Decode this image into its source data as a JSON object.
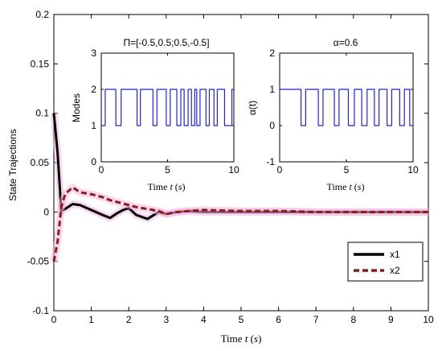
{
  "chart_data": [
    {
      "type": "line",
      "title": "",
      "xlabel_prefix": "Time ",
      "xlabel_var": "t",
      "xlabel_unit_open": " (",
      "xlabel_unit": "s",
      "xlabel_unit_close": ")",
      "ylabel": "State Trajections",
      "xlim": [
        0,
        10
      ],
      "ylim": [
        -0.1,
        0.2
      ],
      "xticks": [
        0,
        1,
        2,
        3,
        4,
        5,
        6,
        7,
        8,
        9,
        10
      ],
      "yticks": [
        -0.1,
        -0.05,
        0,
        0.05,
        0.1,
        0.15,
        0.2
      ],
      "ytick_labels": [
        "-0.1",
        "-0.05",
        "0",
        "0.05",
        "0.1",
        "0.15",
        "0.2"
      ],
      "legend": "bottom-right",
      "series": [
        {
          "name": "x1",
          "color": "#000000",
          "style": "solid",
          "x": [
            0,
            0.1,
            0.2,
            0.3,
            0.5,
            0.7,
            1.0,
            1.3,
            1.5,
            1.7,
            1.85,
            2.0,
            2.2,
            2.5,
            2.8,
            3.0,
            3.3,
            3.6,
            4.0,
            5.0,
            6.0,
            7.0,
            8.0,
            9.0,
            10.0
          ],
          "y": [
            0.1,
            0.06,
            0.001,
            0.003,
            0.008,
            0.007,
            0.002,
            -0.003,
            -0.006,
            -0.001,
            0.002,
            0.004,
            -0.003,
            -0.007,
            0.0,
            -0.002,
            0.0,
            0.001,
            0.0,
            0.0,
            0.0,
            0.0,
            0.0,
            0.0,
            0.0
          ]
        },
        {
          "name": "x2",
          "color": "#8b1a1a",
          "style": "dashed",
          "x": [
            0,
            0.1,
            0.2,
            0.3,
            0.5,
            0.7,
            1.0,
            1.3,
            1.5,
            1.8,
            2.0,
            2.2,
            2.5,
            2.8,
            3.0,
            3.3,
            3.6,
            4.0,
            5.0,
            6.0,
            7.0,
            8.0,
            9.0,
            10.0
          ],
          "y": [
            -0.05,
            -0.03,
            0.005,
            0.018,
            0.025,
            0.02,
            0.018,
            0.015,
            0.012,
            0.009,
            0.007,
            0.005,
            0.003,
            0.001,
            -0.002,
            0.0,
            0.001,
            0.002,
            0.001,
            0.001,
            0.0,
            0.0,
            0.0,
            0.0
          ]
        }
      ]
    },
    {
      "type": "line",
      "title": "Π=[-0.5,0.5;0.5,-0.5]",
      "xlabel_prefix": "Time ",
      "xlabel_var": "t",
      "xlabel_unit_open": " (",
      "xlabel_unit": "s",
      "xlabel_unit_close": ")",
      "ylabel": "Modes",
      "xlim": [
        0,
        10
      ],
      "ylim": [
        0,
        3
      ],
      "xticks": [
        0,
        5,
        10
      ],
      "yticks": [
        0,
        1,
        2,
        3
      ],
      "series": [
        {
          "name": "",
          "color": "#2222cc",
          "step": true,
          "x": [
            0,
            0.3,
            1.1,
            1.5,
            2.7,
            2.95,
            3.9,
            4.2,
            4.9,
            5.2,
            5.7,
            6.0,
            6.25,
            6.55,
            6.8,
            7.05,
            7.2,
            7.45,
            7.9,
            8.15,
            8.5,
            8.75,
            9.3,
            9.85,
            10.0
          ],
          "y": [
            1,
            2,
            1,
            2,
            1,
            2,
            1,
            2,
            1,
            2,
            1,
            2,
            1,
            2,
            1,
            2,
            1,
            2,
            1,
            2,
            1,
            2,
            1,
            2,
            2
          ]
        }
      ]
    },
    {
      "type": "line",
      "title": "α=0.6",
      "xlabel_prefix": "Time ",
      "xlabel_var": "t",
      "xlabel_unit_open": " (",
      "xlabel_unit": "s",
      "xlabel_unit_close": ")",
      "ylabel": "α(t)",
      "xlim": [
        0,
        10
      ],
      "ylim": [
        -1,
        2
      ],
      "xticks": [
        0,
        5,
        10
      ],
      "yticks": [
        -1,
        0,
        1,
        2
      ],
      "series": [
        {
          "name": "",
          "color": "#2222cc",
          "step": true,
          "x": [
            0,
            1.6,
            1.95,
            2.9,
            3.25,
            4.1,
            4.45,
            5.15,
            5.6,
            6.15,
            6.55,
            7.1,
            7.45,
            8.05,
            8.4,
            9.0,
            9.35,
            9.75,
            10.0
          ],
          "y": [
            1,
            0,
            1,
            0,
            1,
            0,
            1,
            0,
            1,
            0,
            1,
            0,
            1,
            0,
            1,
            0,
            1,
            0,
            0
          ]
        }
      ]
    }
  ]
}
